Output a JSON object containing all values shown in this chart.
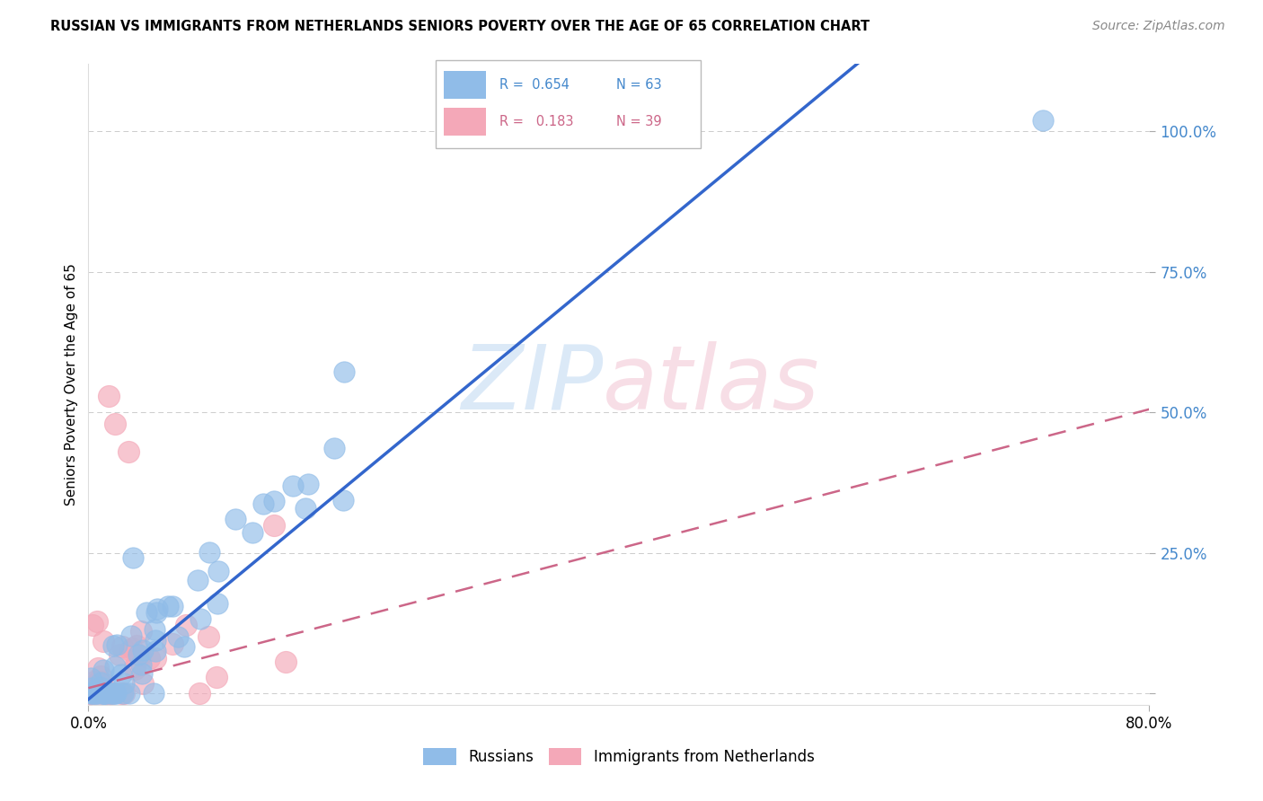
{
  "title": "RUSSIAN VS IMMIGRANTS FROM NETHERLANDS SENIORS POVERTY OVER THE AGE OF 65 CORRELATION CHART",
  "source": "Source: ZipAtlas.com",
  "ylabel": "Seniors Poverty Over the Age of 65",
  "xlim": [
    0.0,
    0.8
  ],
  "ylim": [
    -0.02,
    1.12
  ],
  "ytick_positions": [
    0.0,
    0.25,
    0.5,
    0.75,
    1.0
  ],
  "ytick_labels": [
    "",
    "25.0%",
    "50.0%",
    "75.0%",
    "100.0%"
  ],
  "grid_color": "#cccccc",
  "background_color": "#ffffff",
  "russians_color": "#90bce8",
  "netherlands_color": "#f4a8b8",
  "russians_edge_color": "#6090c8",
  "netherlands_edge_color": "#d07090",
  "legend_R_russian": "0.654",
  "legend_N_russian": "63",
  "legend_R_netherlands": "0.183",
  "legend_N_netherlands": "39",
  "watermark_zip_color": "#cce0f5",
  "watermark_atlas_color": "#f5d0dc",
  "russian_line_color": "#3366cc",
  "netherlands_line_color": "#cc6688",
  "tick_label_color": "#4488cc",
  "russian_slope": 1.95,
  "russian_intercept": -0.01,
  "netherlands_slope": 0.62,
  "netherlands_intercept": 0.01
}
